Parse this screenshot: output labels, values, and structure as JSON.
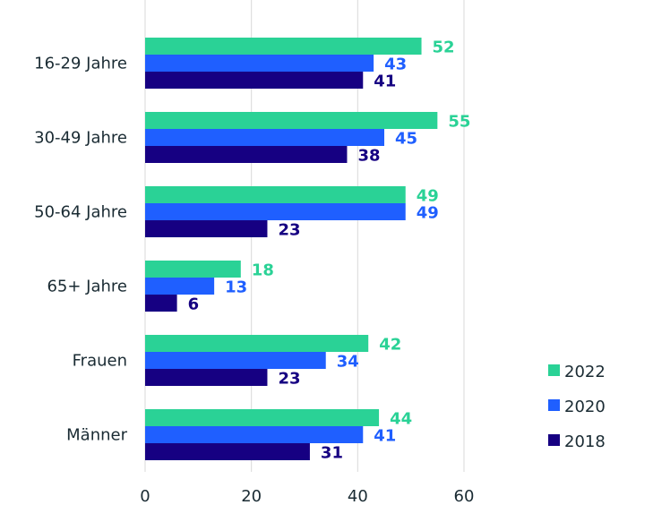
{
  "chart_data": {
    "type": "bar",
    "orientation": "horizontal",
    "title": "",
    "xlabel": "",
    "ylabel": "",
    "categories": [
      "16-29 Jahre",
      "30-49 Jahre",
      "50-64 Jahre",
      "65+ Jahre",
      "Frauen",
      "Männer"
    ],
    "series": [
      {
        "name": "2022",
        "color": "#2ad296",
        "values": [
          52,
          55,
          49,
          18,
          42,
          44
        ]
      },
      {
        "name": "2020",
        "color": "#1f5fff",
        "values": [
          43,
          45,
          49,
          13,
          34,
          41
        ]
      },
      {
        "name": "2018",
        "color": "#160082",
        "values": [
          41,
          38,
          23,
          6,
          23,
          31
        ]
      }
    ],
    "xlim": [
      0,
      60
    ],
    "xticks": [
      "0",
      "20",
      "40",
      "60"
    ],
    "grid": true,
    "legend_position": "right-bottom"
  }
}
